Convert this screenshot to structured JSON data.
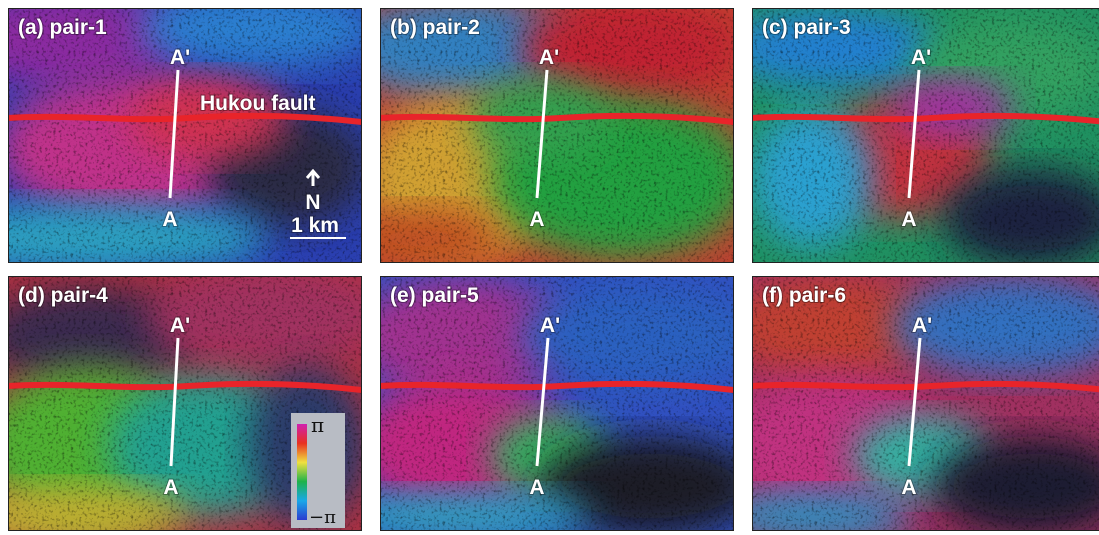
{
  "panels": [
    {
      "label": "(a) pair-1",
      "start": "A",
      "end": "A'"
    },
    {
      "label": "(b) pair-2",
      "start": "A",
      "end": "A'"
    },
    {
      "label": "(c) pair-3",
      "start": "A",
      "end": "A'"
    },
    {
      "label": "(d) pair-4",
      "start": "A",
      "end": "A'"
    },
    {
      "label": "(e) pair-5",
      "start": "A",
      "end": "A'"
    },
    {
      "label": "(f) pair-6",
      "start": "A",
      "end": "A'"
    }
  ],
  "fault_label": "Hukou fault",
  "north": "N",
  "scale": "1 km",
  "colorbar": {
    "max": "π",
    "min": "−π"
  }
}
